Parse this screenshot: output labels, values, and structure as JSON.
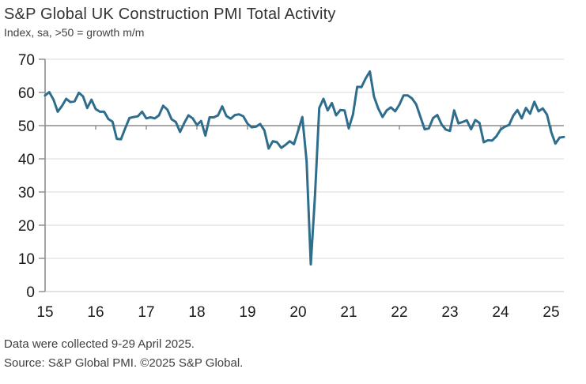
{
  "header": {
    "title": "S&P Global UK Construction PMI Total Activity",
    "subtitle": "Index, sa, >50 = growth m/m"
  },
  "footer": {
    "line1": "Data were collected 9-29 April 2025.",
    "line2": "Source: S&P Global PMI. ©2025 S&P Global."
  },
  "chart_data": {
    "type": "line",
    "title": "S&P Global UK Construction PMI Total Activity",
    "series_name": "UK Construction PMI Total Activity Index",
    "frequency": "monthly",
    "start": "2015-01",
    "end": "2025-04",
    "x_tick_labels": [
      "15",
      "16",
      "17",
      "18",
      "19",
      "20",
      "21",
      "22",
      "23",
      "24",
      "25"
    ],
    "months_per_tick": 12,
    "y_ticks": [
      0,
      10,
      20,
      30,
      40,
      50,
      60,
      70
    ],
    "ylim": [
      0,
      70
    ],
    "baseline_value": 50,
    "grid_on": true,
    "legend": "none",
    "line_color": "#2E6D8C",
    "grid_color": "#d9d9d9",
    "baseline_color": "#8c8c8c",
    "axis_color": "#8c8c8c",
    "bottom_axis_color": "#c6c6c6",
    "values": [
      59.1,
      60.1,
      57.8,
      54.2,
      55.9,
      58.1,
      57.1,
      57.3,
      59.9,
      58.8,
      55.3,
      57.8,
      55.0,
      54.2,
      54.2,
      52.0,
      51.2,
      46.0,
      45.9,
      49.2,
      52.3,
      52.6,
      52.8,
      54.2,
      52.2,
      52.5,
      52.2,
      53.1,
      56.0,
      54.8,
      51.9,
      51.1,
      48.1,
      50.8,
      53.1,
      52.2,
      50.2,
      51.4,
      47.0,
      52.5,
      52.5,
      53.1,
      55.8,
      52.9,
      52.1,
      53.2,
      53.4,
      52.8,
      50.6,
      49.5,
      49.7,
      50.5,
      48.6,
      43.1,
      45.3,
      45.0,
      43.3,
      44.2,
      45.3,
      44.4,
      48.4,
      52.6,
      39.3,
      8.2,
      28.9,
      55.3,
      58.1,
      54.6,
      56.8,
      53.1,
      54.7,
      54.6,
      49.2,
      53.3,
      61.7,
      61.6,
      64.2,
      66.3,
      58.7,
      55.2,
      52.6,
      54.6,
      55.5,
      54.3,
      56.3,
      59.1,
      59.1,
      58.2,
      56.4,
      52.6,
      48.9,
      49.2,
      52.3,
      53.2,
      50.4,
      48.8,
      48.4,
      54.6,
      50.7,
      51.1,
      51.6,
      48.9,
      51.7,
      50.8,
      45.0,
      45.6,
      45.5,
      46.8,
      48.8,
      49.7,
      50.2,
      53.0,
      54.7,
      52.2,
      55.3,
      53.6,
      57.2,
      54.3,
      55.2,
      53.3,
      48.1,
      44.6,
      46.4,
      46.6
    ]
  }
}
